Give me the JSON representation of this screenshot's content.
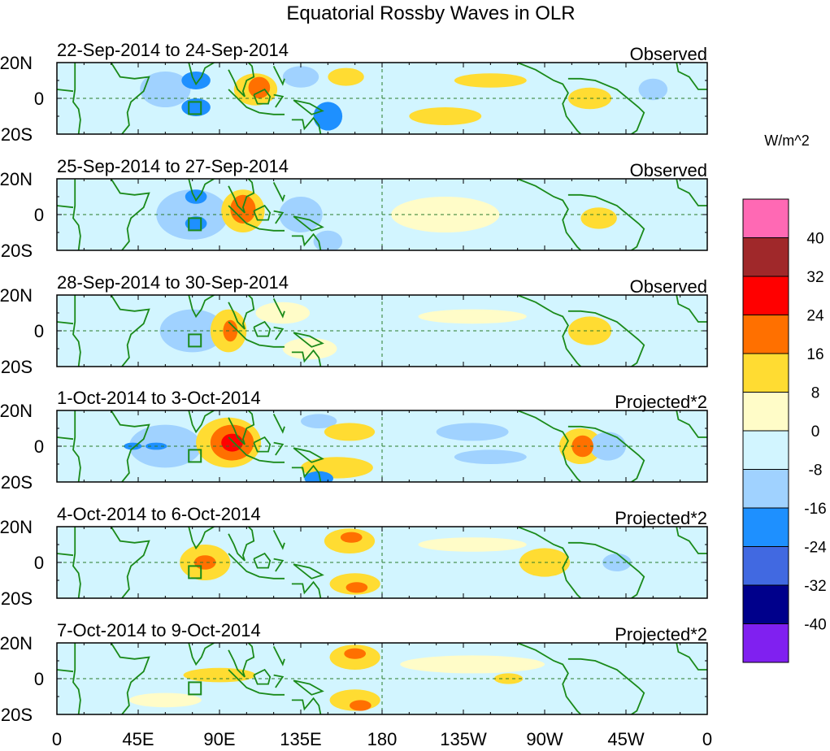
{
  "chart_data": {
    "type": "heatmap",
    "title": "Equatorial Rossby Waves in OLR",
    "units_label": "W/m^2",
    "lat_range": [
      -20,
      20
    ],
    "lon_range": [
      0,
      360
    ],
    "y_tick_labels": [
      "20N",
      "0",
      "20S"
    ],
    "x_tick_labels": [
      "0",
      "45E",
      "90E",
      "135E",
      "180",
      "135W",
      "90W",
      "45W",
      "0"
    ],
    "colorbar": {
      "levels": [
        -40,
        -32,
        -24,
        -16,
        -8,
        0,
        8,
        16,
        24,
        32,
        40
      ],
      "level_labels": [
        "40",
        "32",
        "24",
        "16",
        "8",
        "0",
        "-8",
        "-16",
        "-24",
        "-32",
        "-40"
      ],
      "colors_low_to_high": [
        "#8020f0",
        "#00008b",
        "#4169e1",
        "#1e90ff",
        "#a0d2ff",
        "#d2f5ff",
        "#fffcc8",
        "#ffdc32",
        "#ff7000",
        "#ff0000",
        "#a0282a",
        "#ff69b4"
      ]
    },
    "panels": [
      {
        "date_range": "22-Sep-2014 to 24-Sep-2014",
        "kind": "Observed",
        "anomalies": [
          [
            60,
            5,
            14,
            10,
            -8
          ],
          [
            77,
            10,
            8,
            5,
            -16
          ],
          [
            77,
            -5,
            8,
            5,
            -16
          ],
          [
            110,
            5,
            12,
            9,
            8
          ],
          [
            112,
            6,
            6,
            6,
            16
          ],
          [
            135,
            12,
            10,
            6,
            -8
          ],
          [
            150,
            -10,
            8,
            8,
            -16
          ],
          [
            160,
            12,
            10,
            5,
            8
          ],
          [
            240,
            10,
            20,
            4,
            8
          ],
          [
            295,
            0,
            12,
            6,
            8
          ],
          [
            215,
            -10,
            20,
            5,
            8
          ],
          [
            330,
            5,
            8,
            6,
            -8
          ]
        ]
      },
      {
        "date_range": "25-Sep-2014 to 27-Sep-2014",
        "kind": "Observed",
        "anomalies": [
          [
            75,
            0,
            20,
            14,
            -8
          ],
          [
            77,
            10,
            6,
            4,
            -16
          ],
          [
            77,
            -5,
            6,
            4,
            -16
          ],
          [
            103,
            2,
            12,
            12,
            8
          ],
          [
            103,
            3,
            7,
            8,
            16
          ],
          [
            135,
            0,
            12,
            10,
            -8
          ],
          [
            150,
            -15,
            8,
            6,
            -8
          ],
          [
            300,
            -2,
            10,
            6,
            8
          ],
          [
            215,
            0,
            30,
            10,
            3
          ]
        ]
      },
      {
        "date_range": "28-Sep-2014 to 30-Sep-2014",
        "kind": "Observed",
        "anomalies": [
          [
            75,
            0,
            18,
            12,
            -8
          ],
          [
            95,
            0,
            10,
            12,
            8
          ],
          [
            96,
            0,
            4,
            6,
            16
          ],
          [
            125,
            10,
            15,
            6,
            3
          ],
          [
            140,
            -10,
            15,
            6,
            3
          ],
          [
            295,
            0,
            12,
            8,
            8
          ],
          [
            230,
            8,
            30,
            4,
            3
          ]
        ]
      },
      {
        "date_range": "1-Oct-2014 to 3-Oct-2014",
        "kind": "Projected*2",
        "anomalies": [
          [
            60,
            0,
            20,
            12,
            -8
          ],
          [
            55,
            0,
            6,
            2,
            -16
          ],
          [
            42,
            0,
            5,
            2,
            -16
          ],
          [
            95,
            2,
            18,
            14,
            8
          ],
          [
            97,
            2,
            12,
            10,
            16
          ],
          [
            97,
            2,
            6,
            5,
            24
          ],
          [
            145,
            14,
            10,
            4,
            -8
          ],
          [
            162,
            8,
            14,
            5,
            8
          ],
          [
            155,
            -12,
            20,
            6,
            8
          ],
          [
            145,
            -18,
            8,
            4,
            -16
          ],
          [
            290,
            0,
            12,
            10,
            8
          ],
          [
            291,
            0,
            6,
            6,
            16
          ],
          [
            305,
            0,
            10,
            8,
            -8
          ],
          [
            230,
            8,
            20,
            5,
            -8
          ],
          [
            240,
            -6,
            20,
            4,
            -8
          ]
        ]
      },
      {
        "date_range": "4-Oct-2014 to 6-Oct-2014",
        "kind": "Projected*2",
        "anomalies": [
          [
            82,
            0,
            14,
            10,
            8
          ],
          [
            82,
            0,
            6,
            4,
            16
          ],
          [
            162,
            12,
            14,
            7,
            8
          ],
          [
            163,
            14,
            6,
            3,
            16
          ],
          [
            165,
            -12,
            14,
            6,
            8
          ],
          [
            166,
            -14,
            6,
            3,
            16
          ],
          [
            270,
            0,
            14,
            8,
            8
          ],
          [
            310,
            0,
            8,
            5,
            -8
          ],
          [
            230,
            10,
            30,
            4,
            3
          ]
        ]
      },
      {
        "date_range": "7-Oct-2014 to 9-Oct-2014",
        "kind": "Projected*2",
        "anomalies": [
          [
            90,
            2,
            20,
            4,
            8
          ],
          [
            165,
            12,
            14,
            7,
            8
          ],
          [
            165,
            14,
            6,
            3,
            16
          ],
          [
            165,
            -12,
            14,
            6,
            8
          ],
          [
            168,
            -15,
            6,
            3,
            16
          ],
          [
            250,
            0,
            8,
            3,
            8
          ],
          [
            60,
            -12,
            20,
            4,
            3
          ],
          [
            230,
            8,
            40,
            5,
            3
          ]
        ]
      }
    ]
  }
}
